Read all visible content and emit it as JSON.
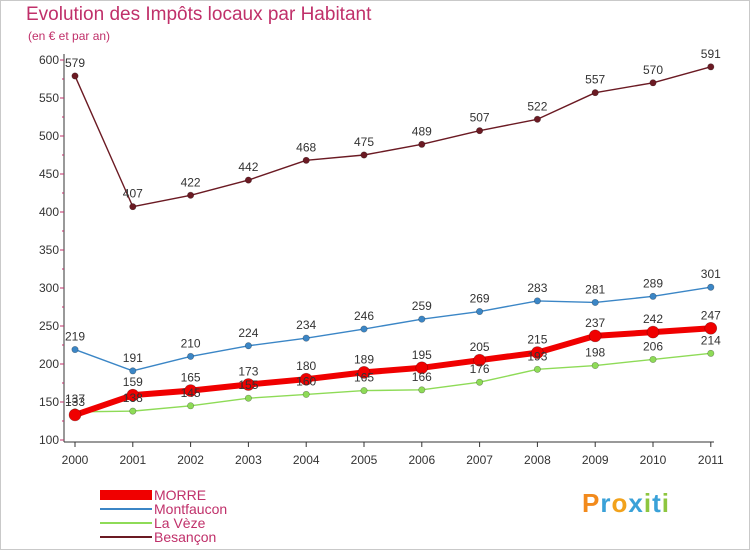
{
  "chart_data": {
    "type": "line",
    "title": "Evolution des Impôts locaux par Habitant",
    "subtitle": "(en € et par an)",
    "xlabel": "",
    "ylabel": "",
    "ylim": [
      100,
      600
    ],
    "yticks": [
      "100",
      "150",
      "200",
      "250",
      "300",
      "350",
      "400",
      "450",
      "500",
      "550",
      "600"
    ],
    "categories": [
      "2000",
      "2001",
      "2002",
      "2003",
      "2004",
      "2005",
      "2006",
      "2007",
      "2008",
      "2009",
      "2010",
      "2011"
    ],
    "series": [
      {
        "name": "Besançon",
        "color": "#6b1a23",
        "values": [
          579,
          407,
          422,
          442,
          468,
          475,
          489,
          507,
          522,
          557,
          570,
          591
        ],
        "labels": [
          "579",
          "407",
          "422",
          "442",
          "468",
          "475",
          "489",
          "507",
          "522",
          "557",
          "570",
          "591"
        ]
      },
      {
        "name": "Montfaucon",
        "color": "#3b86c6",
        "values": [
          219,
          191,
          210,
          224,
          234,
          246,
          259,
          269,
          283,
          281,
          289,
          301
        ],
        "labels": [
          "219",
          "191",
          "210",
          "224",
          "234",
          "246",
          "259",
          "269",
          "283",
          "281",
          "289",
          "301"
        ]
      },
      {
        "name": "La Vèze",
        "color": "#8edb57",
        "values": [
          137,
          138,
          145,
          155,
          160,
          165,
          166,
          176,
          193,
          198,
          206,
          214
        ],
        "labels": [
          "137",
          "138",
          "145",
          "155",
          "160",
          "165",
          "166",
          "176",
          "193",
          "198",
          "206",
          "214"
        ]
      },
      {
        "name": "MORRE",
        "color": "#f00000",
        "values": [
          133,
          159,
          165,
          173,
          180,
          189,
          195,
          205,
          215,
          237,
          242,
          247
        ],
        "labels": [
          "133",
          "159",
          "165",
          "173",
          "180",
          "189",
          "195",
          "205",
          "215",
          "237",
          "242",
          "247"
        ]
      }
    ],
    "legend": [
      "MORRE",
      "Montfaucon",
      "La Vèze",
      "Besançon"
    ],
    "legend_position": "bottom-left",
    "grid": false
  },
  "logo": {
    "letters": [
      "P",
      "r",
      "o",
      "x",
      "i",
      "t",
      "i"
    ],
    "colors": [
      "#f28a1c",
      "#3aa1d8",
      "#f2a21c",
      "#3aa1d8",
      "#8dc63f",
      "#3aa1d8",
      "#8dc63f"
    ]
  }
}
